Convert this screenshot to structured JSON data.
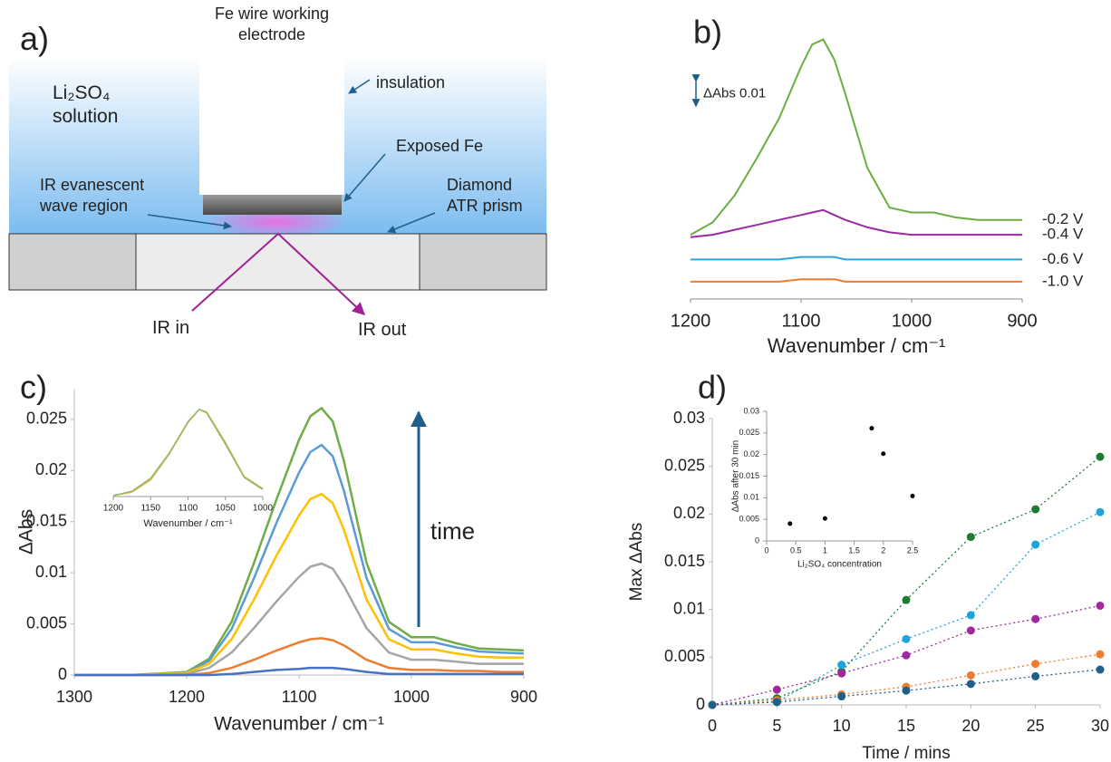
{
  "diagram": {
    "label": "a)",
    "electrode": "Fe wire working electrode",
    "solution": "Li₂SO₄ solution",
    "insulation": "insulation",
    "exposed": "Exposed Fe",
    "evanescent": "IR evanescent wave region",
    "prism": "Diamond ATR prism",
    "ir_in": "IR in",
    "ir_out": "IR out"
  },
  "chart_data": [
    {
      "type": "line",
      "panel": "b)",
      "xlabel": "Wavenumber / cm⁻¹",
      "xlim": [
        1200,
        900
      ],
      "xticks": [
        1200,
        1100,
        1000,
        900
      ],
      "ylim": [
        0,
        0.11
      ],
      "scale_bar": {
        "label": "ΔAbs 0.01",
        "value": 0.01
      },
      "end_labels": true,
      "x": [
        1200,
        1180,
        1160,
        1140,
        1120,
        1100,
        1090,
        1080,
        1070,
        1060,
        1040,
        1020,
        1000,
        980,
        960,
        940,
        920,
        900
      ],
      "series": [
        {
          "name": "-0.2 V",
          "color": "#6aae3f",
          "values": [
            0.026,
            0.031,
            0.042,
            0.057,
            0.073,
            0.094,
            0.103,
            0.105,
            0.097,
            0.083,
            0.053,
            0.037,
            0.035,
            0.035,
            0.033,
            0.032,
            0.032,
            0.032
          ]
        },
        {
          "name": "-0.4 V",
          "color": "#9b2aa0",
          "values": [
            0.025,
            0.026,
            0.028,
            0.03,
            0.032,
            0.034,
            0.035,
            0.036,
            0.034,
            0.032,
            0.029,
            0.027,
            0.026,
            0.026,
            0.026,
            0.026,
            0.026,
            0.026
          ]
        },
        {
          "name": "-0.6 V",
          "color": "#2ea3e0",
          "values": [
            0.016,
            0.016,
            0.016,
            0.016,
            0.016,
            0.017,
            0.017,
            0.017,
            0.017,
            0.016,
            0.016,
            0.016,
            0.016,
            0.016,
            0.016,
            0.016,
            0.016,
            0.016
          ]
        },
        {
          "name": "-1.0 V",
          "color": "#f07a30",
          "values": [
            0.007,
            0.007,
            0.007,
            0.007,
            0.007,
            0.008,
            0.008,
            0.008,
            0.008,
            0.007,
            0.007,
            0.007,
            0.007,
            0.007,
            0.007,
            0.007,
            0.007,
            0.007
          ]
        }
      ]
    },
    {
      "type": "line",
      "panel": "c)",
      "xlabel": "Wavenumber / cm⁻¹",
      "ylabel": "ΔAbs",
      "annotation": "time",
      "xlim": [
        1300,
        900
      ],
      "xticks": [
        1300,
        1200,
        1100,
        1000,
        900
      ],
      "ylim": [
        0,
        0.028
      ],
      "yticks": [
        0,
        0.005,
        0.01,
        0.015,
        0.02,
        0.025
      ],
      "x": [
        1300,
        1250,
        1200,
        1180,
        1160,
        1140,
        1120,
        1100,
        1090,
        1080,
        1070,
        1060,
        1040,
        1020,
        1000,
        980,
        960,
        940,
        920,
        900
      ],
      "series": [
        {
          "color": "#70ad47",
          "values": [
            0,
            0,
            0.0003,
            0.0016,
            0.0052,
            0.011,
            0.0172,
            0.023,
            0.0253,
            0.0261,
            0.0248,
            0.0209,
            0.011,
            0.0052,
            0.0037,
            0.0037,
            0.0031,
            0.0026,
            0.0025,
            0.0024
          ]
        },
        {
          "color": "#5b9bd5",
          "values": [
            0,
            0,
            0.0002,
            0.0014,
            0.0045,
            0.0095,
            0.0149,
            0.0198,
            0.0218,
            0.0225,
            0.0214,
            0.018,
            0.0095,
            0.0045,
            0.0032,
            0.0032,
            0.0027,
            0.0023,
            0.0022,
            0.0021
          ]
        },
        {
          "color": "#ffc000",
          "values": [
            0,
            0,
            0.0002,
            0.0011,
            0.0035,
            0.0074,
            0.0117,
            0.0156,
            0.0172,
            0.0177,
            0.0168,
            0.0142,
            0.0074,
            0.0035,
            0.0025,
            0.0025,
            0.0021,
            0.0018,
            0.0017,
            0.0017
          ]
        },
        {
          "color": "#a5a5a5",
          "values": [
            0,
            0,
            0.0001,
            0.0007,
            0.0022,
            0.0046,
            0.0072,
            0.0096,
            0.0106,
            0.0109,
            0.0104,
            0.0087,
            0.0046,
            0.0022,
            0.0015,
            0.0015,
            0.0013,
            0.0011,
            0.0011,
            0.0011
          ]
        },
        {
          "color": "#ed7d31",
          "values": [
            0,
            0,
            0,
            0.0002,
            0.0007,
            0.0015,
            0.0024,
            0.0032,
            0.0035,
            0.0036,
            0.0034,
            0.0029,
            0.0015,
            0.0007,
            0.0005,
            0.0005,
            0.0004,
            0.0004,
            0.0003,
            0.0003
          ]
        },
        {
          "color": "#4472c4",
          "values": [
            0,
            0,
            0,
            0,
            0.0001,
            0.0003,
            0.0005,
            0.0006,
            0.0007,
            0.0007,
            0.0007,
            0.0006,
            0.0003,
            0.0001,
            0.0001,
            0.0001,
            0.0001,
            0.0001,
            0.0001,
            0.0001
          ]
        }
      ]
    },
    {
      "type": "line",
      "xlabel": "Wavenumber / cm⁻¹",
      "xlim": [
        1200,
        1000
      ],
      "xticks": [
        1200,
        1150,
        1100,
        1050,
        1000
      ],
      "ylim": [
        0,
        1.05
      ],
      "x": [
        1200,
        1175,
        1150,
        1125,
        1100,
        1085,
        1075,
        1050,
        1025,
        1000
      ],
      "series": [
        {
          "color": "#e3b54a",
          "values": [
            0.01,
            0.05,
            0.19,
            0.49,
            0.85,
            1.0,
            0.97,
            0.62,
            0.23,
            0.09
          ]
        },
        {
          "color": "#8fb86a",
          "values": [
            0.01,
            0.06,
            0.21,
            0.5,
            0.86,
            1.0,
            0.96,
            0.6,
            0.22,
            0.08
          ]
        }
      ]
    },
    {
      "type": "scatter",
      "panel": "d)",
      "xlabel": "Time / mins",
      "ylabel": "Max ΔAbs",
      "line_style": "dotted",
      "xlim": [
        0,
        30
      ],
      "xticks": [
        0,
        5,
        10,
        15,
        20,
        25,
        30
      ],
      "ylim": [
        0,
        0.03
      ],
      "yticks": [
        0,
        0.005,
        0.01,
        0.015,
        0.02,
        0.025,
        0.03
      ],
      "x": [
        0,
        5,
        10,
        15,
        20,
        25,
        30
      ],
      "series": [
        {
          "color": "#1e7b34",
          "values": [
            0,
            0.0007,
            0.0035,
            0.011,
            0.0176,
            0.0205,
            0.026
          ]
        },
        {
          "color": "#1fa3dc",
          "values": [
            0,
            0.0003,
            0.0042,
            0.0069,
            0.0094,
            0.0168,
            0.0202
          ]
        },
        {
          "color": "#a0289e",
          "values": [
            0,
            0.0016,
            0.0033,
            0.0052,
            0.0078,
            0.009,
            0.0104
          ]
        },
        {
          "color": "#ee7d31",
          "values": [
            0,
            0.0005,
            0.0011,
            0.0019,
            0.0031,
            0.0043,
            0.0053
          ]
        },
        {
          "color": "#1f5f8b",
          "values": [
            0,
            0.0003,
            0.0009,
            0.0015,
            0.0022,
            0.003,
            0.0037
          ]
        }
      ]
    },
    {
      "type": "scatter",
      "xlabel": "Li₂SO₄ concentration",
      "ylabel": "ΔAbs after 30 min",
      "xlim": [
        0,
        2.5
      ],
      "xticks": [
        0,
        0.5,
        1,
        1.5,
        2,
        2.5
      ],
      "ylim": [
        0,
        0.03
      ],
      "yticks": [
        0,
        0.005,
        0.01,
        0.015,
        0.02,
        0.025,
        0.03
      ],
      "x": [
        0.4,
        1,
        1.8,
        2,
        2.5
      ],
      "series": [
        {
          "color": "#000000",
          "values": [
            0.004,
            0.0052,
            0.0261,
            0.0202,
            0.0104
          ]
        }
      ]
    }
  ]
}
